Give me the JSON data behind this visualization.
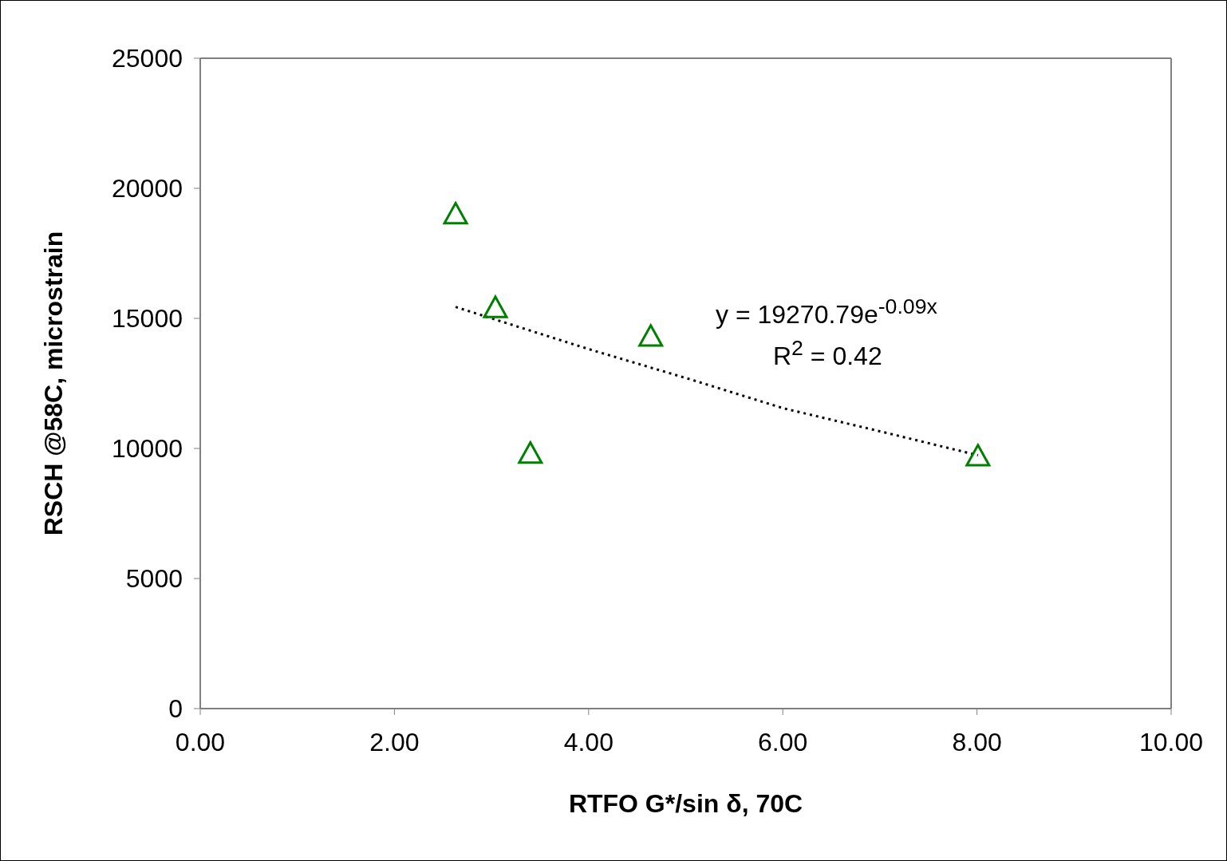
{
  "chart_data": {
    "type": "scatter",
    "xlabel": "RTFO G*/sin δ, 70C",
    "ylabel": "RSCH @58C, microstrain",
    "xlim": [
      0,
      10
    ],
    "xticks": [
      {
        "value": 0,
        "label": "0.00"
      },
      {
        "value": 2,
        "label": "2.00"
      },
      {
        "value": 4,
        "label": "4.00"
      },
      {
        "value": 6,
        "label": "6.00"
      },
      {
        "value": 8,
        "label": "8.00"
      },
      {
        "value": 10,
        "label": "10.00"
      }
    ],
    "ylim": [
      0,
      25000
    ],
    "yticks": [
      0,
      5000,
      10000,
      15000,
      20000,
      25000
    ],
    "series": [
      {
        "color": "#008000",
        "marker": "triangle",
        "x": [
          2.63,
          3.04,
          3.4,
          4.64,
          8.01
        ],
        "values": [
          19000,
          15400,
          9800,
          14300,
          9700
        ]
      },
      {
        "type": "line",
        "color": "#000000",
        "line_style": "dotted",
        "marker": "none",
        "x": [
          2.63,
          4,
          5,
          6,
          7,
          8.01
        ],
        "values": [
          15440,
          13820,
          12710,
          11550,
          10660,
          9740
        ]
      }
    ],
    "annotations": [
      "y = 19270.79e$^{-0.09x}$",
      "R$^{2}$ = 0.42"
    ]
  }
}
